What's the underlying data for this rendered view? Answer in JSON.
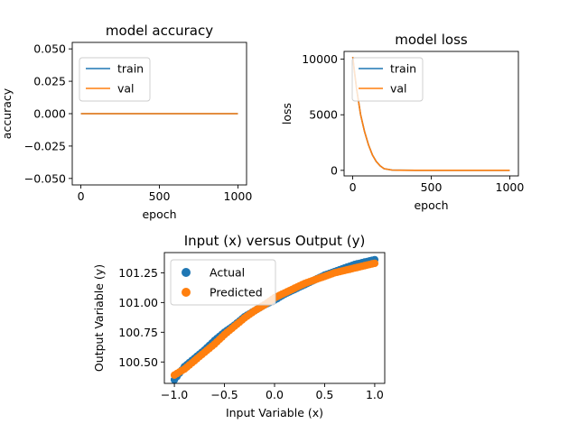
{
  "colors": {
    "train": "#1f77b4",
    "val": "#ff7f0e",
    "actual": "#1f77b4",
    "predicted": "#ff7f0e"
  },
  "chart_data": [
    {
      "type": "line",
      "title": "model accuracy",
      "xlabel": "epoch",
      "ylabel": "accuracy",
      "xlim": [
        -55,
        1055
      ],
      "ylim": [
        -0.055,
        0.055
      ],
      "xticks": [
        0,
        500,
        1000
      ],
      "xtick_labels": [
        "0",
        "500",
        "1000"
      ],
      "yticks": [
        -0.05,
        -0.025,
        0,
        0.025,
        0.05
      ],
      "ytick_labels": [
        "−0.050",
        "−0.025",
        "0.000",
        "0.025",
        "0.050"
      ],
      "legend": {
        "placement": "upper-left",
        "entries": [
          "train",
          "val"
        ]
      },
      "grid": false,
      "series": [
        {
          "name": "train",
          "x": [
            0,
            1000
          ],
          "values": [
            0,
            0
          ]
        },
        {
          "name": "val",
          "x": [
            0,
            1000
          ],
          "values": [
            0,
            0
          ]
        }
      ]
    },
    {
      "type": "line",
      "title": "model loss",
      "xlabel": "epoch",
      "ylabel": "loss",
      "xlim": [
        -55,
        1055
      ],
      "ylim": [
        -500,
        10700
      ],
      "xticks": [
        0,
        500,
        1000
      ],
      "xtick_labels": [
        "0",
        "500",
        "1000"
      ],
      "yticks": [
        0,
        5000,
        10000
      ],
      "ytick_labels": [
        "0",
        "5000",
        "10000"
      ],
      "legend": {
        "placement": "upper-right",
        "entries": [
          "train",
          "val"
        ]
      },
      "grid": false,
      "series": [
        {
          "name": "train",
          "x": [
            0,
            10,
            25,
            50,
            75,
            100,
            125,
            150,
            175,
            200,
            250,
            300,
            400,
            500,
            600,
            700,
            800,
            900,
            1000
          ],
          "values": [
            10200,
            9000,
            7300,
            5000,
            3500,
            2300,
            1400,
            800,
            400,
            150,
            30,
            10,
            5,
            3,
            2,
            1,
            1,
            1,
            1
          ]
        },
        {
          "name": "val",
          "x": [
            0,
            10,
            25,
            50,
            75,
            100,
            125,
            150,
            175,
            200,
            250,
            300,
            400,
            500,
            600,
            700,
            800,
            900,
            1000
          ],
          "values": [
            10200,
            9000,
            7300,
            5000,
            3500,
            2300,
            1400,
            800,
            400,
            150,
            30,
            10,
            5,
            3,
            2,
            1,
            1,
            1,
            1
          ]
        }
      ]
    },
    {
      "type": "scatter",
      "title": "Input (x) versus Output (y)",
      "xlabel": "Input Variable (x)",
      "ylabel": "Output Variable (y)",
      "xlim": [
        -1.1,
        1.1
      ],
      "ylim": [
        100.32,
        101.42
      ],
      "xticks": [
        -1,
        -0.5,
        0,
        0.5,
        1
      ],
      "xtick_labels": [
        "−1.0",
        "−0.5",
        "0.0",
        "0.5",
        "1.0"
      ],
      "yticks": [
        100.5,
        100.75,
        101,
        101.25
      ],
      "ytick_labels": [
        "100.50",
        "100.75",
        "101.00",
        "101.25"
      ],
      "legend": {
        "placement": "upper-left",
        "entries": [
          "Actual",
          "Predicted"
        ]
      },
      "grid": false,
      "series": [
        {
          "name": "Actual",
          "x": [
            -1.0,
            -0.9,
            -0.8,
            -0.7,
            -0.6,
            -0.5,
            -0.4,
            -0.3,
            -0.2,
            -0.1,
            0.0,
            0.1,
            0.2,
            0.3,
            0.4,
            0.5,
            0.6,
            0.7,
            0.8,
            0.9,
            1.0
          ],
          "values": [
            100.35,
            100.46,
            100.53,
            100.6,
            100.68,
            100.75,
            100.81,
            100.88,
            100.93,
            100.98,
            101.02,
            101.07,
            101.11,
            101.15,
            101.19,
            101.23,
            101.26,
            101.29,
            101.32,
            101.34,
            101.36
          ]
        },
        {
          "name": "Predicted",
          "x": [
            -1.0,
            -0.9,
            -0.8,
            -0.7,
            -0.6,
            -0.5,
            -0.4,
            -0.3,
            -0.2,
            -0.1,
            0.0,
            0.1,
            0.2,
            0.3,
            0.4,
            0.5,
            0.6,
            0.7,
            0.8,
            0.9,
            1.0
          ],
          "values": [
            100.39,
            100.44,
            100.51,
            100.58,
            100.65,
            100.73,
            100.8,
            100.87,
            100.93,
            100.98,
            101.04,
            101.08,
            101.12,
            101.16,
            101.19,
            101.22,
            101.25,
            101.27,
            101.29,
            101.31,
            101.33
          ]
        }
      ]
    }
  ]
}
